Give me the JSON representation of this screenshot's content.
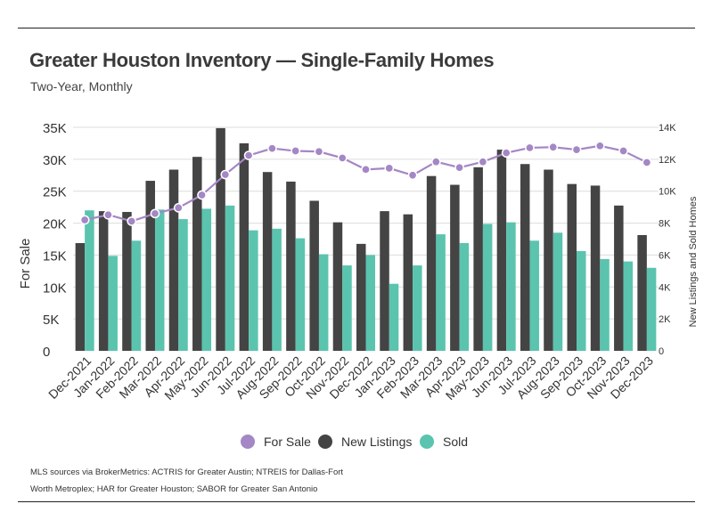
{
  "title": "Greater Houston Inventory — Single-Family Homes",
  "subtitle": "Two-Year, Monthly",
  "footnote_line1": "MLS sources via BrokerMetrics: ACTRIS for Greater Austin; NTREIS for Dallas-Fort",
  "footnote_line2": "Worth Metroplex; HAR for Greater Houston; SABOR for Greater San Antonio",
  "colors": {
    "for_sale": "#a487c5",
    "new_listings": "#444444",
    "sold": "#5bc4ae",
    "grid": "#dcdcdc",
    "text": "#333333"
  },
  "chart_data": {
    "type": "bar",
    "categories": [
      "Dec-2021",
      "Jan-2022",
      "Feb-2022",
      "Mar-2022",
      "Apr-2022",
      "May-2022",
      "Jun-2022",
      "Jul-2022",
      "Aug-2022",
      "Sep-2022",
      "Oct-2022",
      "Nov-2022",
      "Dec-2022",
      "Jan-2023",
      "Feb-2023",
      "Mar-2023",
      "Apr-2023",
      "May-2023",
      "Jun-2023",
      "Jul-2023",
      "Aug-2023",
      "Sep-2023",
      "Oct-2023",
      "Nov-2023",
      "Dec-2023"
    ],
    "ylabel": "For Sale",
    "y2label": "New Listings and Sold Homes",
    "ylim": [
      0,
      35000
    ],
    "y2lim": [
      0,
      14000
    ],
    "yticks": [
      "0",
      "5K",
      "10K",
      "15K",
      "20K",
      "25K",
      "30K",
      "35K"
    ],
    "y2ticks": [
      "0",
      "2K",
      "4K",
      "6K",
      "8K",
      "10K",
      "12K",
      "14K"
    ],
    "legend_position": "bottom",
    "series": [
      {
        "name": "For Sale",
        "type": "line",
        "axis": "left",
        "values": [
          20500,
          21300,
          20300,
          21500,
          22400,
          24400,
          27600,
          30600,
          31700,
          31300,
          31200,
          30200,
          28400,
          28600,
          27500,
          29600,
          28700,
          29600,
          31000,
          31800,
          31900,
          31500,
          32100,
          31300,
          29500
        ]
      },
      {
        "name": "New Listings",
        "type": "bar",
        "axis": "right",
        "values": [
          6750,
          8750,
          8700,
          10650,
          11350,
          12150,
          13950,
          13000,
          11200,
          10600,
          9400,
          8050,
          6700,
          8750,
          8550,
          10950,
          10400,
          11500,
          12600,
          11700,
          11350,
          10450,
          10350,
          9100,
          7250
        ]
      },
      {
        "name": "Sold",
        "type": "bar",
        "axis": "right",
        "values": [
          8800,
          5950,
          6900,
          8850,
          8250,
          8900,
          9100,
          7550,
          7650,
          7050,
          6050,
          5350,
          6000,
          4200,
          5350,
          7300,
          6750,
          7950,
          8050,
          6900,
          7400,
          6250,
          5750,
          5600,
          5200
        ]
      }
    ]
  },
  "legend": [
    {
      "label": "For Sale",
      "color_key": "for_sale"
    },
    {
      "label": "New Listings",
      "color_key": "new_listings"
    },
    {
      "label": "Sold",
      "color_key": "sold"
    }
  ]
}
